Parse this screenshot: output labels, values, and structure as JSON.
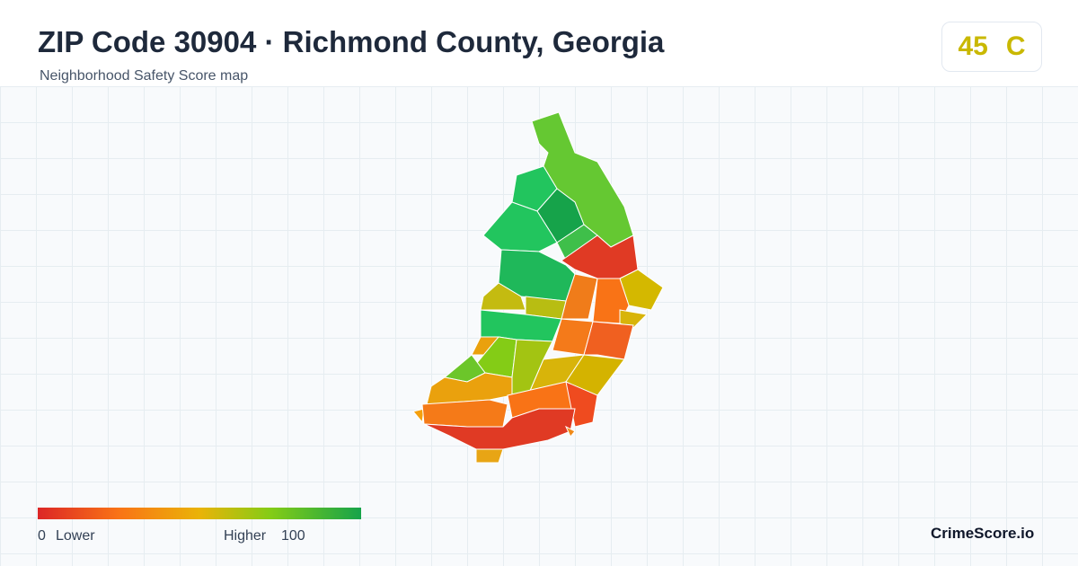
{
  "header": {
    "title": "ZIP Code 30904 · Richmond County, Georgia",
    "subtitle": "Neighborhood Safety Score map"
  },
  "score": {
    "value": 45,
    "grade": "C"
  },
  "legend": {
    "min": 0,
    "min_label": "Lower",
    "max_label": "Higher",
    "max": 100
  },
  "brand": "CrimeScore.io"
}
